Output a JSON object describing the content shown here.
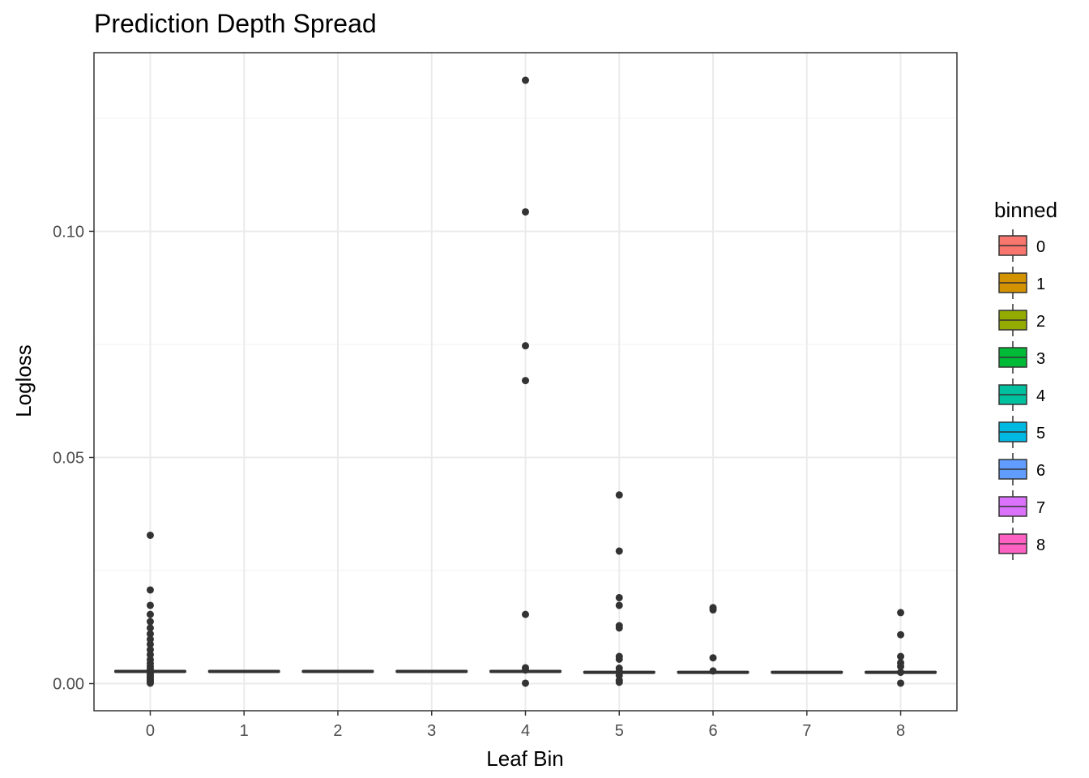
{
  "chart_data": {
    "type": "boxplot",
    "title": "Prediction Depth Spread",
    "xlabel": "Leaf Bin",
    "ylabel": "Logloss",
    "categories": [
      "0",
      "1",
      "2",
      "3",
      "4",
      "5",
      "6",
      "7",
      "8"
    ],
    "ylim": [
      -0.006,
      0.1395
    ],
    "yticks": [
      0.0,
      0.05,
      0.1
    ],
    "ytick_labels": [
      "0.00",
      "0.05",
      "0.10"
    ],
    "grid": true,
    "legend": {
      "title": "binned",
      "placement": "right",
      "entries": [
        "0",
        "1",
        "2",
        "3",
        "4",
        "5",
        "6",
        "7",
        "8"
      ],
      "colors": [
        "#F8766D",
        "#D39200",
        "#93AA00",
        "#00BA38",
        "#00C19F",
        "#00B9E3",
        "#619CFF",
        "#DB72FB",
        "#FF61C3"
      ]
    },
    "series": [
      {
        "category": "0",
        "median": 0.0027,
        "q1": 0.0026,
        "q3": 0.0028,
        "outliers": [
          0.0328,
          0.0207,
          0.0173,
          0.0153,
          0.0137,
          0.0123,
          0.011,
          0.0098,
          0.0087,
          0.0075,
          0.0064,
          0.0053,
          0.0045,
          0.0038,
          0.0032,
          0.0022,
          0.0018,
          0.0014,
          0.001,
          0.0007,
          0.0004,
          0.0001
        ]
      },
      {
        "category": "1",
        "median": 0.0027,
        "q1": 0.0026,
        "q3": 0.0028,
        "outliers": []
      },
      {
        "category": "2",
        "median": 0.0027,
        "q1": 0.0026,
        "q3": 0.0028,
        "outliers": []
      },
      {
        "category": "3",
        "median": 0.0027,
        "q1": 0.0026,
        "q3": 0.0028,
        "outliers": []
      },
      {
        "category": "4",
        "median": 0.0027,
        "q1": 0.0026,
        "q3": 0.0028,
        "outliers": [
          0.1334,
          0.1043,
          0.0747,
          0.067,
          0.0153,
          0.0035,
          0.003,
          0.0001
        ]
      },
      {
        "category": "5",
        "median": 0.0025,
        "q1": 0.0024,
        "q3": 0.0026,
        "outliers": [
          0.0417,
          0.0293,
          0.019,
          0.0173,
          0.0128,
          0.0123,
          0.006,
          0.0054,
          0.0034,
          0.0027,
          0.0018,
          0.0007,
          0.0003
        ]
      },
      {
        "category": "6",
        "median": 0.0025,
        "q1": 0.0024,
        "q3": 0.0026,
        "outliers": [
          0.0168,
          0.0163,
          0.0057,
          0.0028
        ]
      },
      {
        "category": "7",
        "median": 0.0025,
        "q1": 0.0024,
        "q3": 0.0026,
        "outliers": []
      },
      {
        "category": "8",
        "median": 0.0025,
        "q1": 0.0024,
        "q3": 0.0026,
        "outliers": [
          0.0157,
          0.0108,
          0.006,
          0.0046,
          0.0038,
          0.0025,
          0.0001
        ]
      }
    ]
  }
}
